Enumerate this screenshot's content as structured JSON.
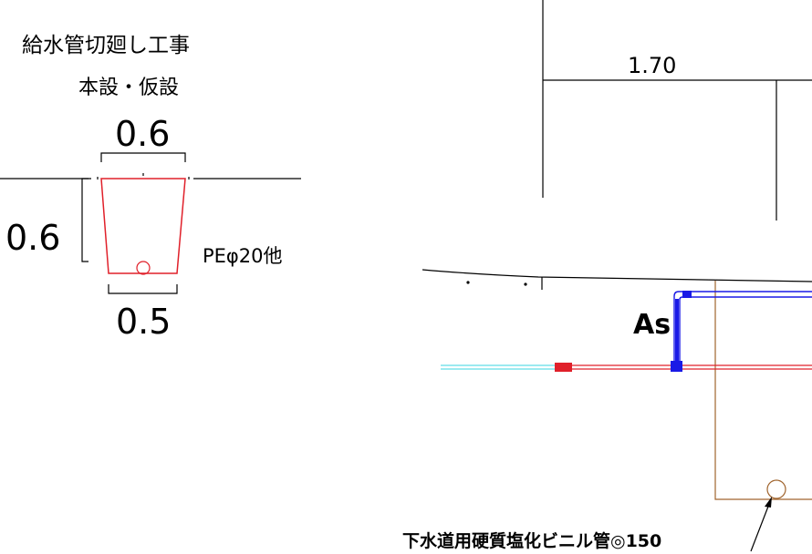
{
  "detail": {
    "title": "給水管切廻し工事",
    "subtitle": "本設・仮設",
    "top_width": "0.6",
    "depth": "0.6",
    "bottom_width": "0.5",
    "pipe_label": "PEφ20他"
  },
  "section": {
    "dimension": "1.70",
    "surface_label": "As",
    "sewer_label": "下水道用硬質塩化ビニル管◎150"
  },
  "colors": {
    "line": "#000000",
    "trench": "#e0202a",
    "water_pipe": "#1a1ae6",
    "water_pipe_existing": "#e0202a",
    "cyan_pipe": "#38d4e0",
    "sewer_trench": "#a0642d"
  }
}
